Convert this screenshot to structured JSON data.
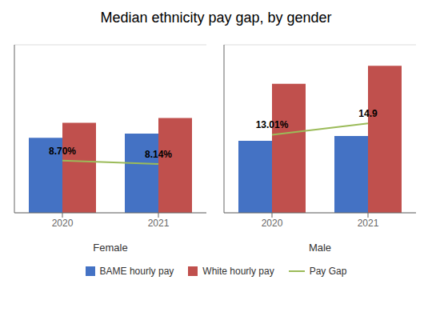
{
  "chart_data": [
    {
      "type": "bar",
      "title": "Median ethnicity pay gap, by gender",
      "x_label": "Female",
      "categories": [
        "2020",
        "2021"
      ],
      "series": [
        {
          "name": "BAME hourly pay",
          "type": "bar",
          "color": "#4472C4",
          "values": [
            12.5,
            13.2
          ]
        },
        {
          "name": "White hourly pay",
          "type": "bar",
          "color": "#C0504D",
          "values": [
            15.0,
            15.8
          ]
        },
        {
          "name": "Pay Gap",
          "type": "line",
          "color": "#9BBB59",
          "values": [
            8.7,
            8.14
          ],
          "value_labels": [
            "8.70%",
            "8.14%"
          ],
          "data_labels": true
        }
      ],
      "ylim": [
        0,
        28
      ],
      "yticks": [
        0,
        5,
        10,
        15,
        20,
        25
      ],
      "grid": true,
      "tick_labels": "x",
      "legend": "bottom"
    },
    {
      "type": "bar",
      "x_label": "Male",
      "categories": [
        "2020",
        "2021"
      ],
      "series": [
        {
          "name": "BAME hourly pay",
          "type": "bar",
          "color": "#4472C4",
          "values": [
            12.0,
            12.8
          ]
        },
        {
          "name": "White hourly pay",
          "type": "bar",
          "color": "#C0504D",
          "values": [
            21.5,
            24.5
          ]
        },
        {
          "name": "Pay Gap",
          "type": "line",
          "color": "#9BBB59",
          "values": [
            13.01,
            14.9
          ],
          "value_labels": [
            "13.01%",
            "14.9"
          ],
          "data_labels": true
        }
      ],
      "ylim": [
        0,
        28
      ],
      "yticks": [
        0,
        5,
        10,
        15,
        20,
        25
      ],
      "grid": true,
      "tick_labels": "x"
    }
  ]
}
